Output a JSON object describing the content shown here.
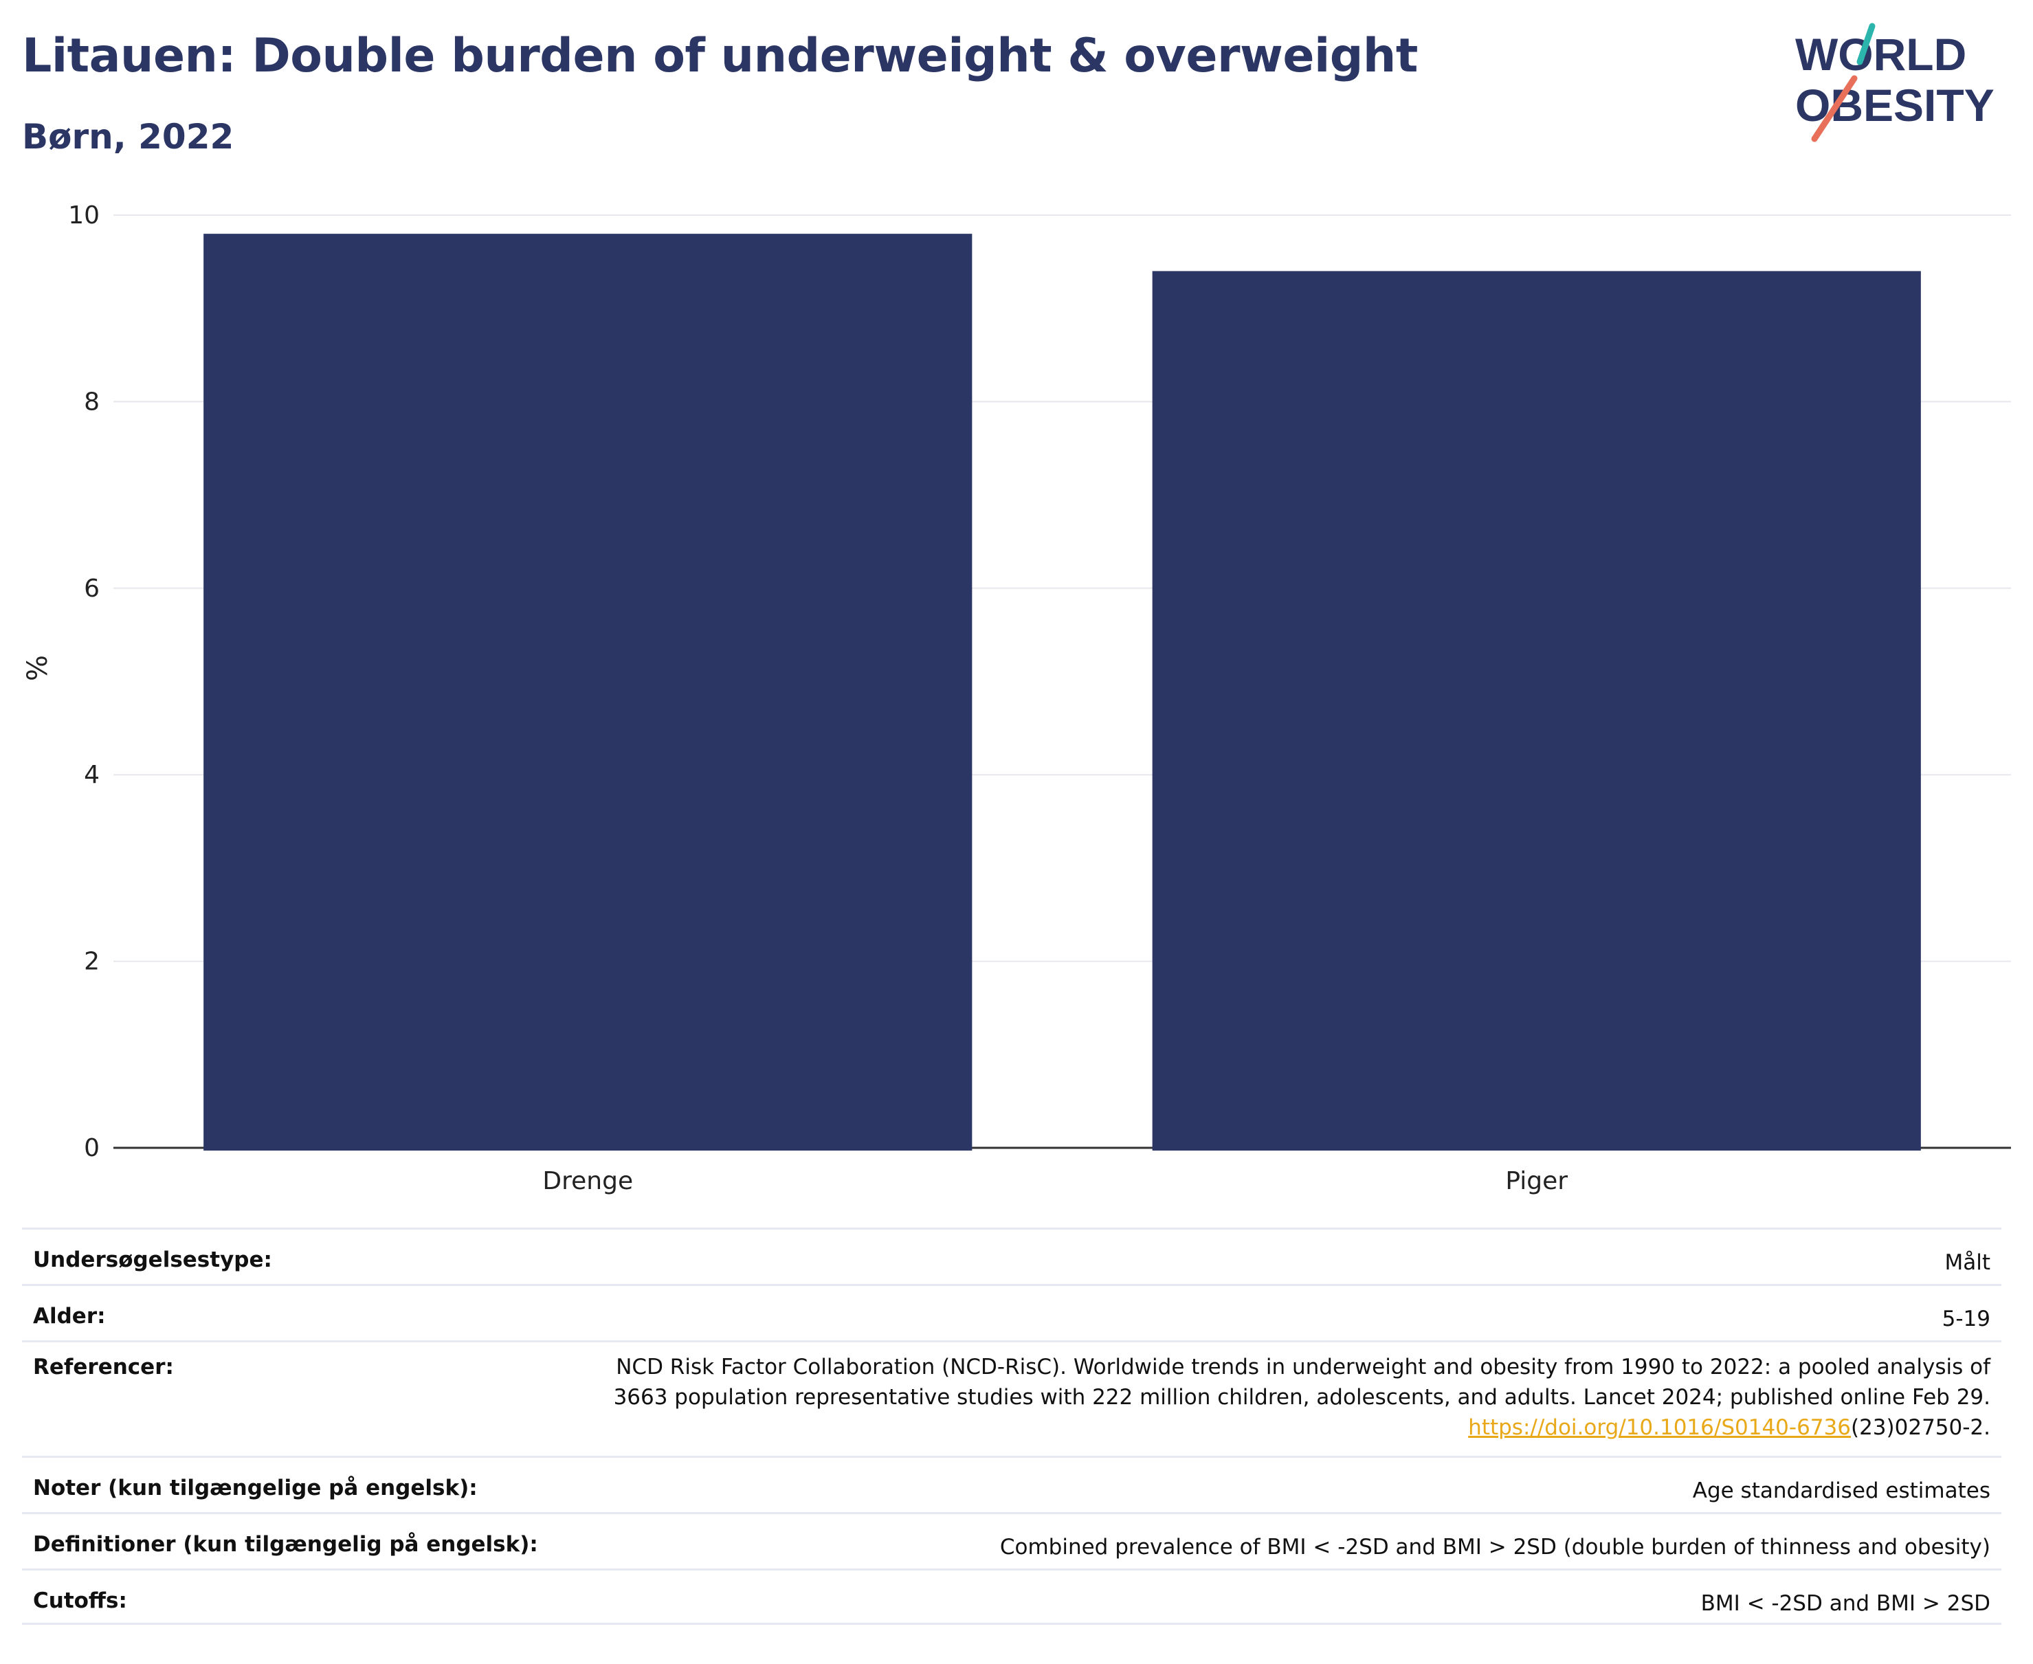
{
  "header": {
    "title": "Litauen: Double burden of underweight & overweight",
    "subtitle": "Børn, 2022"
  },
  "logo": {
    "line1": "WORLD",
    "line2": "OBESITY",
    "colors": [
      "#2b3664",
      "#2bb5ac",
      "#e8705a"
    ]
  },
  "chart_data": {
    "type": "bar",
    "categories": [
      "Drenge",
      "Piger"
    ],
    "values": [
      9.8,
      9.4
    ],
    "ylabel": "%",
    "xlabel": "",
    "ylim": [
      0,
      10
    ],
    "yticks": [
      0,
      2,
      4,
      6,
      8,
      10
    ],
    "bar_color": "#2b3664",
    "grid": true
  },
  "info": {
    "survey_type": {
      "label": "Undersøgelsestype:",
      "value": "Målt"
    },
    "age": {
      "label": "Alder:",
      "value": "5-19"
    },
    "references": {
      "label": "Referencer:",
      "line1": "NCD Risk Factor Collaboration (NCD-RisC). Worldwide trends in underweight and obesity from 1990 to 2022: a pooled analysis of",
      "line2": "3663 population representative studies with 222 million children, adolescents, and adults. Lancet 2024; published online Feb 29.",
      "link": "https://doi.org/10.1016/S0140-6736",
      "link_suffix": "(23)02750-2."
    },
    "notes": {
      "label": "Noter (kun tilgængelige på engelsk):",
      "value": "Age standardised estimates"
    },
    "definitions": {
      "label": "Definitioner (kun tilgængelig på engelsk):",
      "value": "Combined prevalence of BMI < -2SD and BMI > 2SD (double burden of thinness and obesity)"
    },
    "cutoffs": {
      "label": "Cutoffs:",
      "value": "BMI < -2SD and BMI > 2SD"
    }
  }
}
